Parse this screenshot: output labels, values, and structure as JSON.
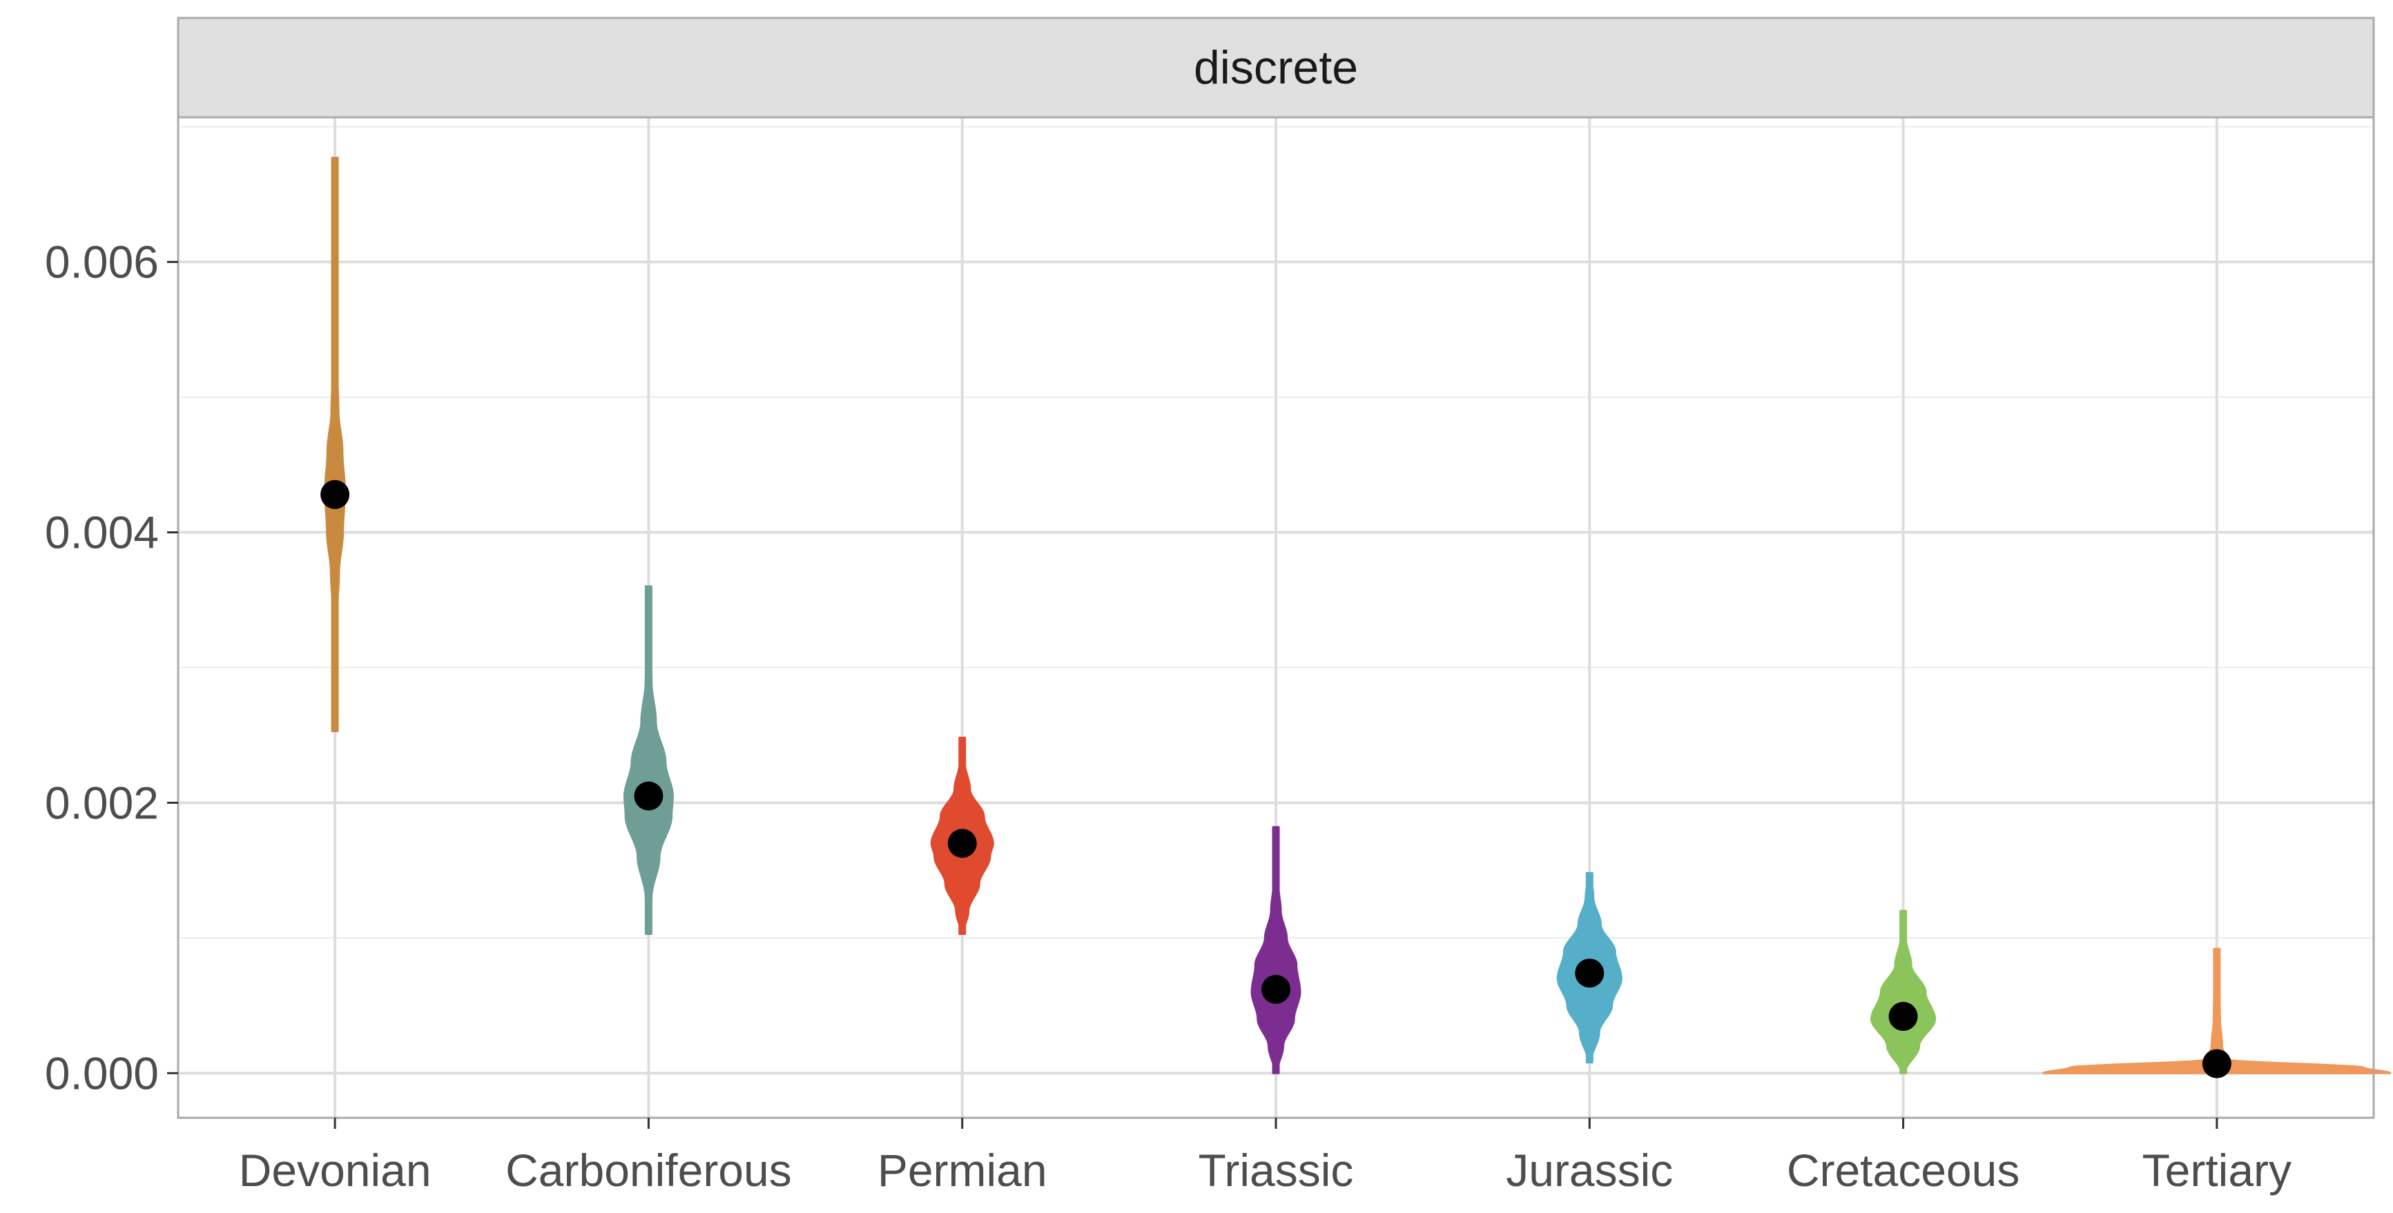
{
  "chart_data": {
    "type": "violin",
    "facet_label": "discrete",
    "title": "",
    "xlabel": "",
    "ylabel": "",
    "categories": [
      "Devonian",
      "Carboniferous",
      "Permian",
      "Triassic",
      "Jurassic",
      "Cretaceous",
      "Tertiary"
    ],
    "ylim": [
      -0.00033,
      0.00707
    ],
    "y_ticks": [
      0.0,
      0.002,
      0.004,
      0.006
    ],
    "y_tick_labels": [
      "0.000",
      "0.002",
      "0.004",
      "0.006"
    ],
    "grid": true,
    "series": [
      {
        "category": "Devonian",
        "color": "#C98A3F",
        "median": 0.00428,
        "min": 0.00253,
        "max": 0.00677,
        "max_halfwidth": 0.0045,
        "profile": [
          [
            0.00253,
            0.02
          ],
          [
            0.0029,
            0.05
          ],
          [
            0.0033,
            0.1
          ],
          [
            0.0037,
            0.4
          ],
          [
            0.004,
            0.8
          ],
          [
            0.0043,
            1.0
          ],
          [
            0.0046,
            0.75
          ],
          [
            0.0049,
            0.35
          ],
          [
            0.0053,
            0.15
          ],
          [
            0.0058,
            0.08
          ],
          [
            0.0063,
            0.04
          ],
          [
            0.00677,
            0.02
          ]
        ]
      },
      {
        "category": "Carboniferous",
        "color": "#6E9E96",
        "median": 0.00205,
        "min": 0.00103,
        "max": 0.0036,
        "max_halfwidth": 0.011,
        "profile": [
          [
            0.00103,
            0.03
          ],
          [
            0.0013,
            0.12
          ],
          [
            0.0016,
            0.45
          ],
          [
            0.0019,
            0.95
          ],
          [
            0.00205,
            1.0
          ],
          [
            0.0023,
            0.7
          ],
          [
            0.0026,
            0.3
          ],
          [
            0.0029,
            0.12
          ],
          [
            0.0032,
            0.05
          ],
          [
            0.0036,
            0.02
          ]
        ]
      },
      {
        "category": "Permian",
        "color": "#E04A2F",
        "median": 0.0017,
        "min": 0.00103,
        "max": 0.00248,
        "max_halfwidth": 0.014,
        "profile": [
          [
            0.00103,
            0.03
          ],
          [
            0.0012,
            0.2
          ],
          [
            0.0014,
            0.55
          ],
          [
            0.0016,
            0.9
          ],
          [
            0.0017,
            1.0
          ],
          [
            0.0019,
            0.7
          ],
          [
            0.0021,
            0.25
          ],
          [
            0.0023,
            0.08
          ],
          [
            0.00248,
            0.03
          ]
        ]
      },
      {
        "category": "Triassic",
        "color": "#7B2E8F",
        "median": 0.00062,
        "min": 0.0,
        "max": 0.00182,
        "max_halfwidth": 0.011,
        "profile": [
          [
            0.0,
            0.04
          ],
          [
            0.0002,
            0.3
          ],
          [
            0.0004,
            0.75
          ],
          [
            0.0006,
            1.0
          ],
          [
            0.0008,
            0.85
          ],
          [
            0.001,
            0.45
          ],
          [
            0.0012,
            0.2
          ],
          [
            0.0014,
            0.1
          ],
          [
            0.0016,
            0.05
          ],
          [
            0.00182,
            0.03
          ]
        ]
      },
      {
        "category": "Jurassic",
        "color": "#56AFC9",
        "median": 0.00074,
        "min": 8e-05,
        "max": 0.00148,
        "max_halfwidth": 0.0145,
        "profile": [
          [
            8e-05,
            0.04
          ],
          [
            0.0003,
            0.3
          ],
          [
            0.0005,
            0.7
          ],
          [
            0.0007,
            1.0
          ],
          [
            0.0009,
            0.8
          ],
          [
            0.0011,
            0.35
          ],
          [
            0.0013,
            0.12
          ],
          [
            0.00148,
            0.03
          ]
        ]
      },
      {
        "category": "Cretaceous",
        "color": "#8BC45A",
        "median": 0.00042,
        "min": 0.0,
        "max": 0.0012,
        "max_halfwidth": 0.0145,
        "profile": [
          [
            0.0,
            0.05
          ],
          [
            0.0002,
            0.5
          ],
          [
            0.0004,
            1.0
          ],
          [
            0.0006,
            0.7
          ],
          [
            0.0008,
            0.25
          ],
          [
            0.001,
            0.08
          ],
          [
            0.0012,
            0.03
          ]
        ]
      },
      {
        "category": "Tertiary",
        "color": "#F0975A",
        "median": 7e-05,
        "min": 0.0,
        "max": 0.00092,
        "max_halfwidth": 0.079,
        "profile": [
          [
            0.0,
            1.0
          ],
          [
            4e-05,
            0.85
          ],
          [
            0.0001,
            0.06
          ],
          [
            0.0002,
            0.03
          ],
          [
            0.0004,
            0.018
          ],
          [
            0.0006,
            0.015
          ],
          [
            0.00092,
            0.01
          ]
        ]
      }
    ]
  }
}
